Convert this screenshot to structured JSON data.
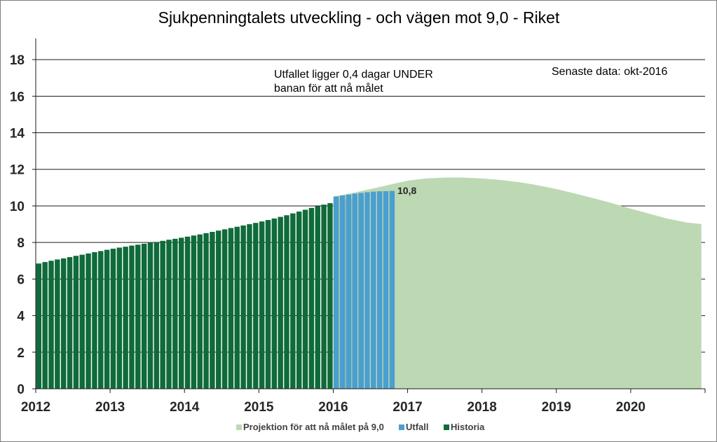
{
  "chart_data": {
    "type": "bar",
    "title": "Sjukpenningtalets utveckling - och vägen mot 9,0 - Riket",
    "xlabel": "",
    "ylabel": "",
    "ylim": [
      0,
      19
    ],
    "yticks": [
      "0",
      "2",
      "4",
      "6",
      "8",
      "10",
      "12",
      "14",
      "16",
      "18"
    ],
    "xticks": [
      "2012",
      "2013",
      "2014",
      "2015",
      "2016",
      "2017",
      "2018",
      "2019",
      "2020"
    ],
    "x_range": [
      2012,
      2021
    ],
    "grid": true,
    "legend_position": "bottom",
    "annotations": {
      "status_line1": "Utfallet ligger 0,4 dagar UNDER",
      "status_line2": "banan för att nå målet",
      "latest_data": "Senaste data: okt-2016",
      "last_value_label": "10,8"
    },
    "series": [
      {
        "name": "Historia",
        "type": "bar",
        "color": "#0f6b3a",
        "start": 2012.0,
        "step_months": 1,
        "values": [
          6.85,
          6.93,
          7.0,
          7.07,
          7.13,
          7.2,
          7.27,
          7.33,
          7.4,
          7.47,
          7.53,
          7.6,
          7.66,
          7.72,
          7.77,
          7.83,
          7.88,
          7.93,
          7.98,
          8.03,
          8.09,
          8.15,
          8.2,
          8.26,
          8.32,
          8.38,
          8.44,
          8.51,
          8.58,
          8.65,
          8.72,
          8.79,
          8.86,
          8.93,
          9.0,
          9.07,
          9.15,
          9.23,
          9.31,
          9.4,
          9.49,
          9.59,
          9.69,
          9.79,
          9.89,
          9.98,
          10.07,
          10.15,
          10.23,
          10.3,
          10.37,
          10.43,
          10.48
        ]
      },
      {
        "name": "Utfall",
        "type": "bar",
        "color": "#4a9fd0",
        "start": 2016.0,
        "step_months": 1,
        "values": [
          10.52,
          10.57,
          10.62,
          10.67,
          10.71,
          10.75,
          10.78,
          10.8,
          10.81,
          10.82
        ]
      },
      {
        "name": "Projektion för att nå målet på 9,0",
        "type": "area",
        "color": "#bcd9b4",
        "x": [
          2016.0,
          2016.25,
          2016.5,
          2016.75,
          2017.0,
          2017.25,
          2017.5,
          2017.75,
          2018.0,
          2018.25,
          2018.5,
          2018.75,
          2019.0,
          2019.25,
          2019.5,
          2019.75,
          2020.0,
          2020.25,
          2020.5,
          2020.75,
          2020.95
        ],
        "values": [
          10.5,
          10.7,
          10.92,
          11.15,
          11.38,
          11.5,
          11.55,
          11.55,
          11.5,
          11.42,
          11.3,
          11.13,
          10.92,
          10.68,
          10.42,
          10.15,
          9.85,
          9.57,
          9.3,
          9.1,
          9.0
        ]
      }
    ]
  }
}
